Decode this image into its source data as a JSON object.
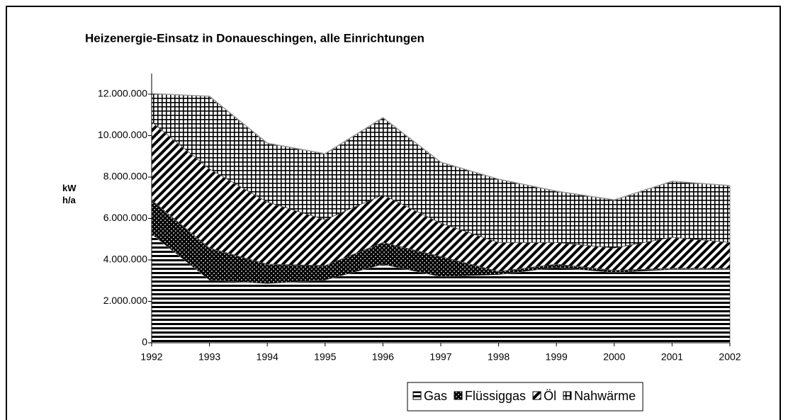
{
  "chart_data": {
    "type": "stacked_area",
    "title": "Heizenergie-Einsatz in Donaueschingen, alle Einrichtungen",
    "ylabel": "kW h/a",
    "categories": [
      "1992",
      "1993",
      "1994",
      "1995",
      "1996",
      "1997",
      "1998",
      "1999",
      "2000",
      "2001",
      "2002"
    ],
    "series": [
      {
        "name": "Gas",
        "color": "#000000",
        "pattern": "horizontal",
        "values": [
          5260000,
          3040000,
          2870000,
          3040000,
          3800000,
          3200000,
          3300000,
          3650000,
          3400000,
          3550000,
          3550000
        ]
      },
      {
        "name": "Flüssiggas",
        "color": "#000000",
        "pattern": "dots",
        "values": [
          1640000,
          1540000,
          930000,
          690000,
          1050000,
          970000,
          150000,
          150000,
          100000,
          50000,
          50000
        ]
      },
      {
        "name": "Öl",
        "color": "#000000",
        "pattern": "diagonal",
        "values": [
          3770000,
          3820000,
          3000000,
          2220000,
          2300000,
          1610000,
          1400000,
          1050000,
          1080000,
          1500000,
          1250000
        ]
      },
      {
        "name": "Nahwärme",
        "color": "#000000",
        "pattern": "grid",
        "values": [
          1360000,
          3500000,
          2840000,
          3180000,
          3720000,
          2940000,
          3050000,
          2470000,
          2320000,
          2700000,
          2740000
        ]
      }
    ],
    "ylim": [
      0,
      13000000
    ],
    "yticks": [
      0,
      {
        "value": 2000000,
        "label": "2.000.000"
      },
      {
        "value": 4000000,
        "label": "4.000.000"
      },
      {
        "value": 6000000,
        "label": "6.000.000"
      },
      {
        "value": 8000000,
        "label": "8.000.000"
      },
      {
        "value": 10000000,
        "label": "10.000.000"
      },
      {
        "value": 12000000,
        "label": "12.000.000"
      }
    ],
    "legend": "bottom"
  }
}
